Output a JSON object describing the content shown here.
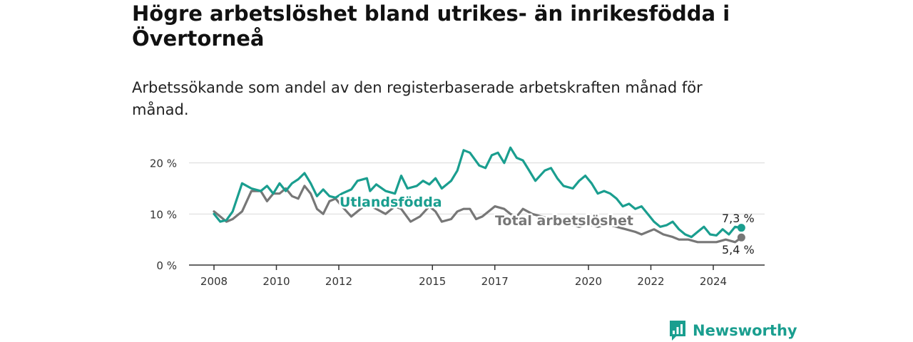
{
  "title": "Högre arbetslöshet bland utrikes- än inrikesfödda i Övertorneå",
  "subtitle": "Arbetssökande som andel av den registerbaserade arbetskraften månad för månad.",
  "brand": {
    "name": "Newsworthy",
    "color": "#1a9e8f"
  },
  "chart_data": {
    "type": "line",
    "ylim": [
      0,
      24
    ],
    "yticks": [
      0,
      10,
      20
    ],
    "ytick_labels": [
      "0 %",
      "10 %",
      "20 %"
    ],
    "xlim": [
      2008.0,
      2025.2
    ],
    "xticks": [
      2008,
      2010,
      2012,
      2015,
      2017,
      2020,
      2022,
      2024
    ],
    "xtick_labels": [
      "2008",
      "2010",
      "2012",
      "2015",
      "2017",
      "2020",
      "2022",
      "2024"
    ],
    "grid": true,
    "series": [
      {
        "name": "Utlandsfödda",
        "color": "#1a9e8f",
        "end_label": "7,3 %",
        "x": [
          2008.0,
          2008.2,
          2008.4,
          2008.6,
          2008.9,
          2009.2,
          2009.5,
          2009.7,
          2009.9,
          2010.1,
          2010.3,
          2010.5,
          2010.7,
          2010.9,
          2011.1,
          2011.3,
          2011.5,
          2011.7,
          2011.9,
          2012.1,
          2012.4,
          2012.6,
          2012.9,
          2013.0,
          2013.2,
          2013.5,
          2013.8,
          2014.0,
          2014.2,
          2014.5,
          2014.7,
          2014.9,
          2015.1,
          2015.3,
          2015.6,
          2015.8,
          2016.0,
          2016.2,
          2016.5,
          2016.7,
          2016.9,
          2017.1,
          2017.3,
          2017.5,
          2017.7,
          2017.9,
          2018.1,
          2018.3,
          2018.6,
          2018.8,
          2019.0,
          2019.2,
          2019.5,
          2019.7,
          2019.9,
          2020.1,
          2020.3,
          2020.5,
          2020.7,
          2020.9,
          2021.1,
          2021.3,
          2021.5,
          2021.7,
          2021.9,
          2022.1,
          2022.3,
          2022.5,
          2022.7,
          2022.9,
          2023.1,
          2023.3,
          2023.5,
          2023.7,
          2023.9,
          2024.1,
          2024.3,
          2024.5,
          2024.7,
          2024.9
        ],
        "y": [
          10.0,
          8.5,
          8.8,
          10.5,
          16.0,
          15.0,
          14.5,
          15.5,
          14.0,
          16.0,
          14.5,
          16.0,
          16.8,
          18.0,
          16.0,
          13.5,
          14.8,
          13.5,
          13.2,
          14.0,
          14.8,
          16.5,
          17.0,
          14.5,
          15.8,
          14.5,
          14.0,
          17.5,
          15.0,
          15.5,
          16.5,
          15.8,
          17.0,
          15.0,
          16.5,
          18.5,
          22.5,
          22.0,
          19.5,
          19.0,
          21.5,
          22.0,
          20.0,
          23.0,
          21.0,
          20.5,
          18.5,
          16.5,
          18.5,
          19.0,
          17.0,
          15.5,
          15.0,
          16.5,
          17.5,
          16.0,
          14.0,
          14.5,
          14.0,
          13.0,
          11.5,
          12.0,
          11.0,
          11.5,
          10.0,
          8.5,
          7.5,
          7.8,
          8.5,
          7.0,
          6.0,
          5.5,
          6.5,
          7.5,
          6.0,
          5.8,
          7.0,
          6.0,
          7.5,
          7.3
        ]
      },
      {
        "name": "Total arbetslöshet",
        "color": "#777777",
        "end_label": "5,4 %",
        "x": [
          2008.0,
          2008.2,
          2008.4,
          2008.6,
          2008.9,
          2009.2,
          2009.5,
          2009.7,
          2009.9,
          2010.1,
          2010.3,
          2010.5,
          2010.7,
          2010.9,
          2011.1,
          2011.3,
          2011.5,
          2011.7,
          2011.9,
          2012.1,
          2012.4,
          2012.6,
          2012.9,
          2013.2,
          2013.5,
          2013.8,
          2014.0,
          2014.3,
          2014.6,
          2014.9,
          2015.1,
          2015.3,
          2015.6,
          2015.8,
          2016.0,
          2016.2,
          2016.4,
          2016.6,
          2016.8,
          2017.0,
          2017.3,
          2017.5,
          2017.7,
          2017.9,
          2018.2,
          2018.5,
          2018.8,
          2019.1,
          2019.4,
          2019.7,
          2020.0,
          2020.3,
          2020.6,
          2020.9,
          2021.2,
          2021.5,
          2021.7,
          2021.9,
          2022.1,
          2022.4,
          2022.7,
          2022.9,
          2023.2,
          2023.5,
          2023.8,
          2024.1,
          2024.4,
          2024.7,
          2024.9
        ],
        "y": [
          10.5,
          9.5,
          8.5,
          9.0,
          10.5,
          14.5,
          14.5,
          12.5,
          14.0,
          14.0,
          15.0,
          13.5,
          13.0,
          15.5,
          14.0,
          11.0,
          10.0,
          12.5,
          13.0,
          11.5,
          9.5,
          10.5,
          12.0,
          11.0,
          10.0,
          11.5,
          11.0,
          8.5,
          9.5,
          11.5,
          10.5,
          8.5,
          9.0,
          10.5,
          11.0,
          11.0,
          9.0,
          9.5,
          10.5,
          11.5,
          11.0,
          10.0,
          9.5,
          11.0,
          10.0,
          9.5,
          9.0,
          8.5,
          8.0,
          7.5,
          8.0,
          7.5,
          8.0,
          7.5,
          7.0,
          6.5,
          6.0,
          6.5,
          7.0,
          6.0,
          5.5,
          5.0,
          5.0,
          4.5,
          4.5,
          4.5,
          5.0,
          4.5,
          5.4
        ]
      }
    ]
  }
}
